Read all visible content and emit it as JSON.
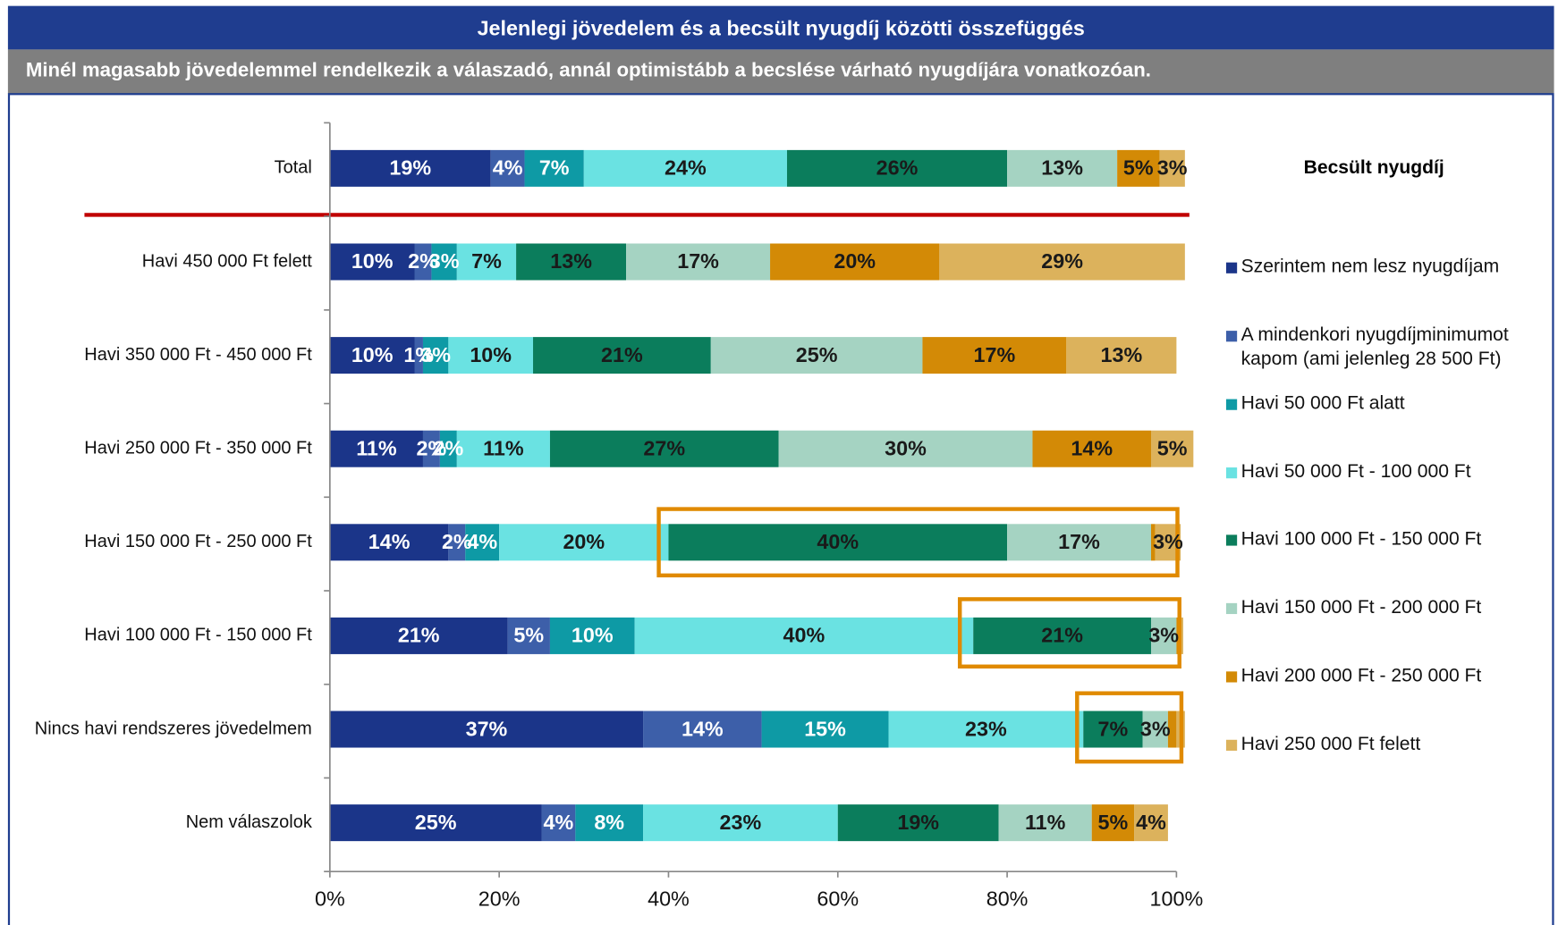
{
  "chart_data": {
    "type": "stacked-bar-horizontal",
    "title": "Jelenlegi jövedelem és a becsült nyugdíj közötti összefüggés",
    "subtitle": "Minél magasabb jövedelemmel rendelkezik a válaszadó, annál optimistább a becslése várható nyugdíjára vonatkozóan.",
    "legend_title": "Becsült nyugdíj",
    "categories": [
      "Total",
      "Havi 450 000 Ft felett",
      "Havi 350 000 Ft - 450 000 Ft",
      "Havi 250 000 Ft - 350 000 Ft",
      "Havi 150 000 Ft - 250 000 Ft",
      "Havi 100 000 Ft - 150 000 Ft",
      "Nincs havi rendszeres jövedelmem",
      "Nem válaszolok"
    ],
    "series": [
      {
        "name": "Szerintem nem lesz nyugdíjam",
        "color": "#1b3589",
        "values": [
          19,
          10,
          10,
          11,
          14,
          21,
          37,
          25
        ],
        "value_labels": [
          "19%",
          "10%",
          "10%",
          "11%",
          "14%",
          "21%",
          "37%",
          "25%"
        ]
      },
      {
        "name": "A mindenkori nyugdíjminimumot kapom (ami jelenleg 28 500 Ft)",
        "color": "#3d5fa9",
        "values": [
          4,
          2,
          1,
          2,
          2,
          5,
          14,
          4
        ],
        "value_labels": [
          "4%",
          "2%",
          "1%",
          "2%",
          "2%",
          "5%",
          "14%",
          "4%"
        ]
      },
      {
        "name": "Havi 50 000 Ft alatt",
        "color": "#0e9aa5",
        "values": [
          7,
          3,
          3,
          2,
          4,
          10,
          15,
          8
        ],
        "value_labels": [
          "7%",
          "3%",
          "3%",
          "2%",
          "4%",
          "10%",
          "15%",
          "8%"
        ]
      },
      {
        "name": "Havi 50 000 Ft - 100 000 Ft",
        "color": "#6ae2e2",
        "values": [
          24,
          7,
          10,
          11,
          20,
          40,
          23,
          23
        ],
        "value_labels": [
          "24%",
          "7%",
          "10%",
          "11%",
          "20%",
          "40%",
          "23%",
          "23%"
        ]
      },
      {
        "name": "Havi 100 000 Ft - 150 000 Ft",
        "color": "#0b7d5c",
        "values": [
          26,
          13,
          21,
          27,
          40,
          21,
          7,
          19
        ],
        "value_labels": [
          "26%",
          "13%",
          "21%",
          "27%",
          "40%",
          "21%",
          "7%",
          "19%"
        ]
      },
      {
        "name": "Havi 150 000 Ft - 200 000 Ft",
        "color": "#a5d3c2",
        "values": [
          13,
          17,
          25,
          30,
          17,
          3,
          3,
          11
        ],
        "value_labels": [
          "13%",
          "17%",
          "25%",
          "30%",
          "17%",
          "3%",
          "3%",
          "11%"
        ]
      },
      {
        "name": "Havi 200 000 Ft - 250 000 Ft",
        "color": "#d38a06",
        "values": [
          5,
          20,
          17,
          14,
          0.5,
          0.5,
          1,
          5
        ],
        "value_labels": [
          "5%",
          "20%",
          "17%",
          "14%",
          null,
          null,
          null,
          "5%"
        ]
      },
      {
        "name": "Havi 250 000 Ft felett",
        "color": "#dcb25c",
        "values": [
          3,
          29,
          13,
          5,
          3,
          0.3,
          1,
          4
        ],
        "value_labels": [
          "3%",
          "29%",
          "13%",
          "5%",
          "3%",
          null,
          null,
          "4%"
        ]
      }
    ],
    "xlim": [
      0,
      100
    ],
    "xticks": [
      {
        "value": 0,
        "label": "0%"
      },
      {
        "value": 20,
        "label": "20%"
      },
      {
        "value": 40,
        "label": "40%"
      },
      {
        "value": 60,
        "label": "60%"
      },
      {
        "value": 80,
        "label": "80%"
      },
      {
        "value": 100,
        "label": "100%"
      }
    ]
  }
}
